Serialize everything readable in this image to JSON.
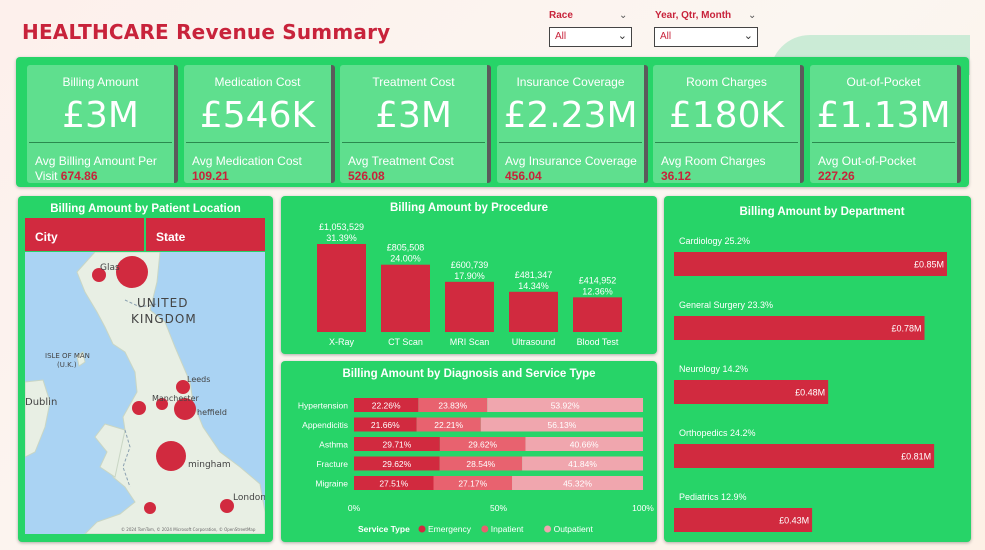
{
  "title": "HEALTHCARE Revenue Summary",
  "slicers": [
    {
      "label": "Race",
      "value": "All"
    },
    {
      "label": "Year, Qtr, Month",
      "value": "All"
    }
  ],
  "kpis": [
    {
      "name": "Billing Amount",
      "value": "£3M",
      "sub_label": "Avg Billing Amount Per Visit",
      "sub_value": "674.86"
    },
    {
      "name": "Medication Cost",
      "value": "£546K",
      "sub_label": "Avg Medication Cost",
      "sub_value": "109.21"
    },
    {
      "name": "Treatment Cost",
      "value": "£3M",
      "sub_label": "Avg Treatment Cost",
      "sub_value": "526.08"
    },
    {
      "name": "Insurance Coverage",
      "value": "£2.23M",
      "sub_label": "Avg Insurance Coverage",
      "sub_value": "456.04"
    },
    {
      "name": "Room Charges",
      "value": "£180K",
      "sub_label": "Avg Room Charges",
      "sub_value": "36.12"
    },
    {
      "name": "Out-of-Pocket",
      "value": "£1.13M",
      "sub_label": "Avg Out-of-Pocket",
      "sub_value": "227.26"
    }
  ],
  "map_panel": {
    "title": "Billing Amount by Patient Location",
    "col_city": "City",
    "col_state": "State",
    "labels": {
      "uk1": "UNITED",
      "uk2": "KINGDOM",
      "iom1": "ISLE OF MAN",
      "iom2": "(U.K.)",
      "dublin": "Dublin",
      "glasgow": "Glas",
      "leeds": "Leeds",
      "manchester": "Manchester",
      "sheffield": "heffield",
      "birmingham": "mingham",
      "london": "London",
      "credit": "© 2024 TomTom, © 2024 Microsoft Corporation, © OpenStreetMap"
    },
    "colors": {
      "sea": "#aad3f3",
      "land": "#e8efe4",
      "bubble": "#d12a3f"
    }
  },
  "chart_data": [
    {
      "type": "bar",
      "title": "Billing Amount by Procedure",
      "categories": [
        "X-Ray",
        "CT Scan",
        "MRI Scan",
        "Ultrasound",
        "Blood Test"
      ],
      "values": [
        1053529,
        805508,
        600739,
        481347,
        414952
      ],
      "value_labels": [
        "£1,053,529",
        "£805,508",
        "£600,739",
        "£481,347",
        "£414,952"
      ],
      "pct_labels": [
        "31.39%",
        "24.00%",
        "17.90%",
        "14.34%",
        "12.36%"
      ],
      "ylim": [
        0,
        1100000
      ],
      "color": "#d12a3f"
    },
    {
      "type": "bar",
      "orientation": "horizontal-stacked-100",
      "title": "Billing Amount by Diagnosis and Service Type",
      "categories": [
        "Hypertension",
        "Appendicitis",
        "Asthma",
        "Fracture",
        "Migraine"
      ],
      "series": [
        {
          "name": "Emergency",
          "values": [
            22.26,
            21.66,
            29.71,
            29.62,
            27.51
          ],
          "labels": [
            "22.26%",
            "21.66%",
            "29.71%",
            "29.62%",
            "27.51%"
          ],
          "color": "#d12a3f"
        },
        {
          "name": "Inpatient",
          "values": [
            23.83,
            22.21,
            29.62,
            28.54,
            27.17
          ],
          "labels": [
            "23.83%",
            "22.21%",
            "29.62%",
            "28.54%",
            "27.17%"
          ],
          "color": "#e8626f"
        },
        {
          "name": "Outpatient",
          "values": [
            53.92,
            56.13,
            40.66,
            41.84,
            45.32
          ],
          "labels": [
            "53.92%",
            "56.13%",
            "40.66%",
            "41.84%",
            "45.32%"
          ],
          "color": "#f0a6ae"
        }
      ],
      "x_ticks": [
        "0%",
        "50%",
        "100%"
      ],
      "legend_title": "Service Type",
      "legend": "bottom"
    },
    {
      "type": "bar",
      "orientation": "horizontal",
      "title": "Billing Amount by Department",
      "categories": [
        "Cardiology",
        "General Surgery",
        "Neurology",
        "Orthopedics",
        "Pediatrics"
      ],
      "category_pcts": [
        "25.2%",
        "23.3%",
        "14.2%",
        "24.2%",
        "12.9%"
      ],
      "values": [
        0.85,
        0.78,
        0.48,
        0.81,
        0.43
      ],
      "value_labels": [
        "£0.85M",
        "£0.78M",
        "£0.48M",
        "£0.81M",
        "£0.43M"
      ],
      "unit": "£M",
      "xlim": [
        0,
        0.9
      ],
      "color": "#d12a3f"
    }
  ]
}
